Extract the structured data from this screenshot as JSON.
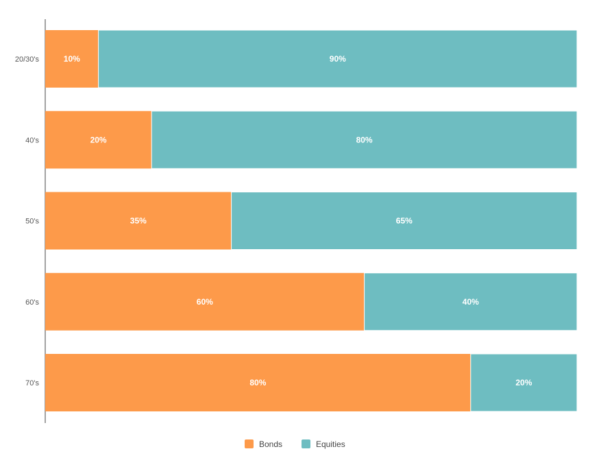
{
  "chart_data": {
    "type": "bar",
    "orientation": "horizontal",
    "stacked": true,
    "categories": [
      "20/30's",
      "40's",
      "50's",
      "60's",
      "70's"
    ],
    "series": [
      {
        "name": "Bonds",
        "color": "#fd9a4a",
        "values": [
          10,
          20,
          35,
          60,
          80
        ],
        "labels": [
          "10%",
          "20%",
          "35%",
          "60%",
          "80%"
        ]
      },
      {
        "name": "Equities",
        "color": "#6ebdc1",
        "values": [
          90,
          80,
          65,
          40,
          20
        ],
        "labels": [
          "90%",
          "80%",
          "65%",
          "40%",
          "20%"
        ]
      }
    ],
    "xlim": [
      0,
      100
    ],
    "title": "",
    "xlabel": "",
    "ylabel": "",
    "grid": false,
    "legend_position": "bottom-center"
  },
  "legend": {
    "bonds_label": "Bonds",
    "equities_label": "Equities"
  },
  "colors": {
    "bonds": "#fd9a4a",
    "equities": "#6ebdc1",
    "axis": "#444444"
  }
}
